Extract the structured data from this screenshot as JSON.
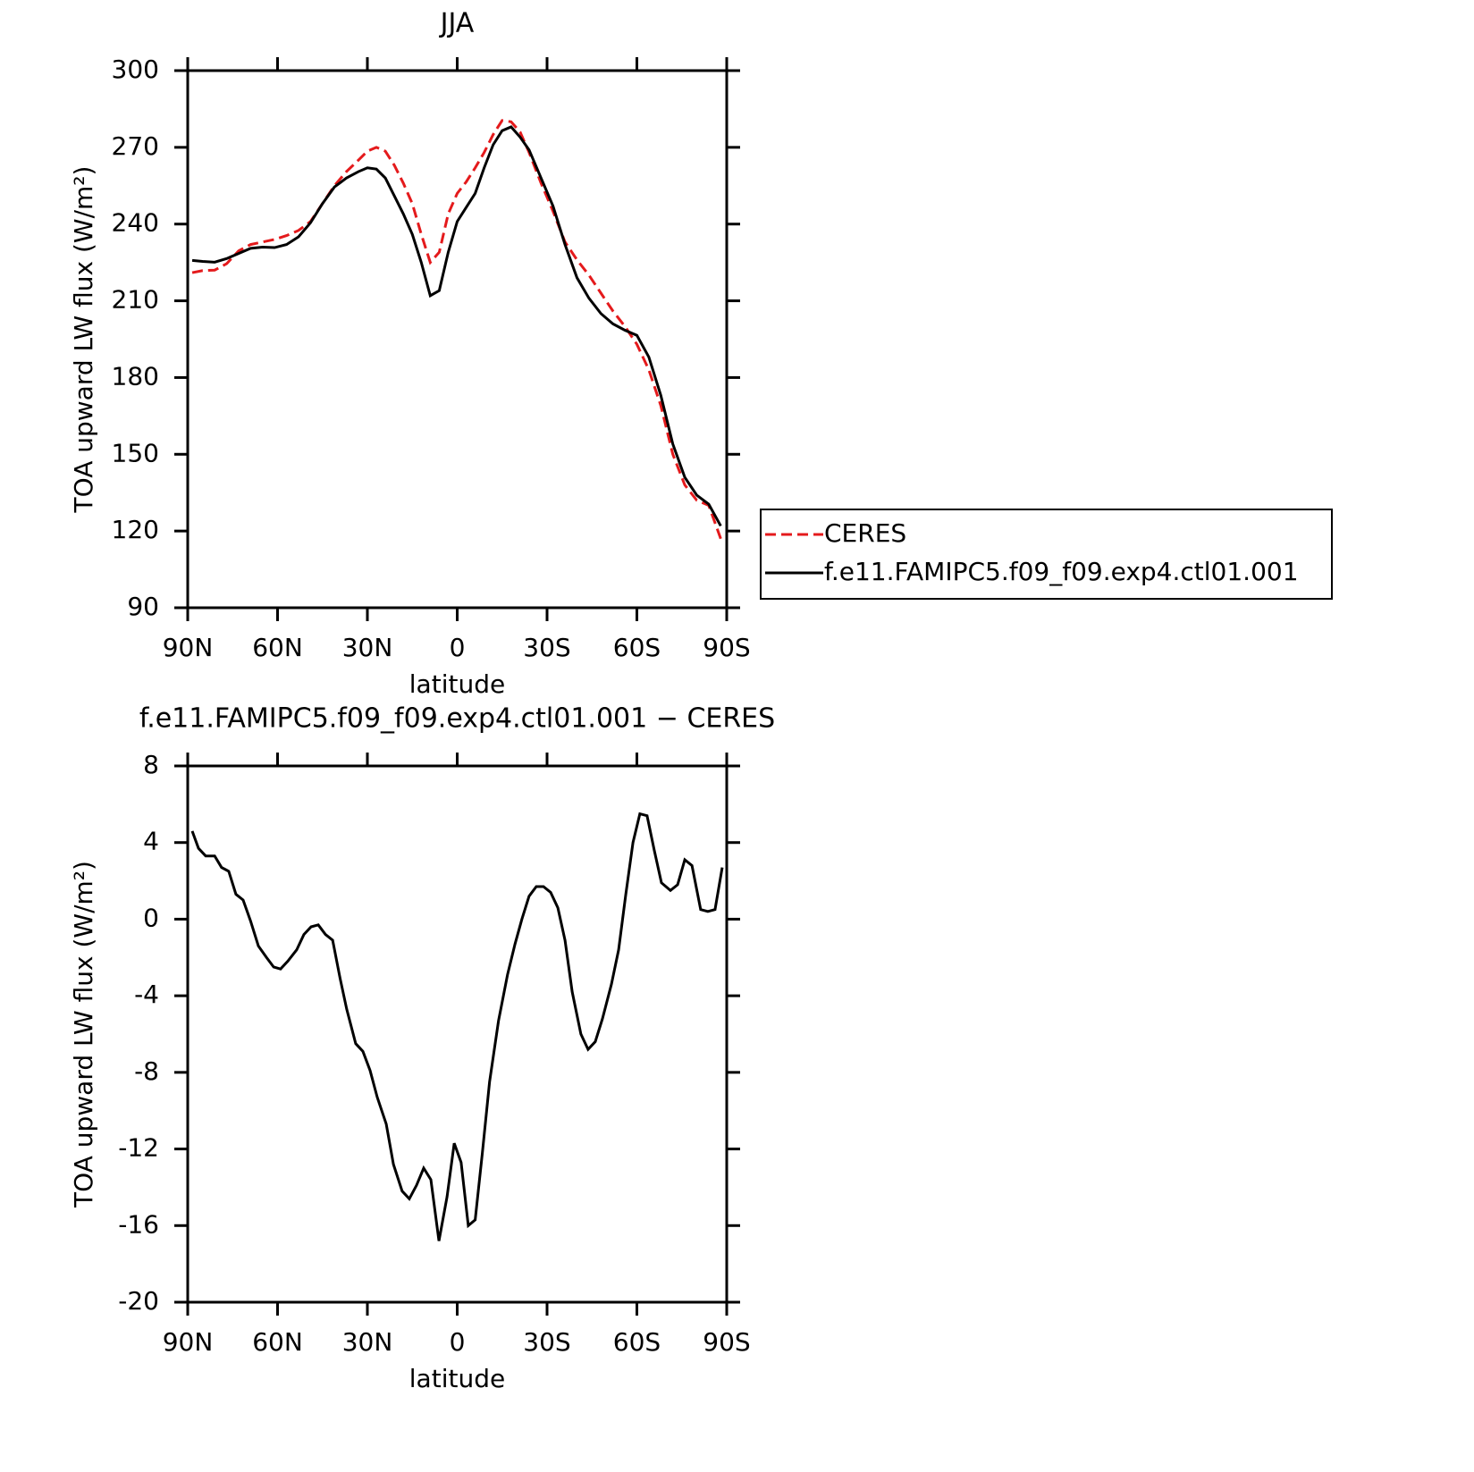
{
  "chart_data": [
    {
      "type": "line",
      "title": "JJA",
      "x_label": "latitude",
      "y_label": "TOA upward LW flux (W/m²)",
      "x": [
        88.5,
        85,
        81,
        77,
        73,
        69,
        65,
        61,
        57,
        53,
        49,
        45,
        41,
        37,
        33,
        30,
        27,
        24,
        21,
        18,
        15,
        12,
        9,
        6,
        3,
        0,
        -3,
        -6,
        -9,
        -12,
        -15,
        -18,
        -21,
        -24,
        -28,
        -32,
        -36,
        -40,
        -44,
        -48,
        -52,
        -56,
        -60,
        -64,
        -68,
        -72,
        -76,
        -80,
        -84,
        -88
      ],
      "series": [
        {
          "name": "CERES",
          "color": "#e41a1c",
          "line_style": "dashed",
          "values": [
            221,
            221.8,
            222,
            224.5,
            229.5,
            232,
            233,
            234,
            235.5,
            237.5,
            241,
            248,
            255,
            260.5,
            265,
            268.5,
            270,
            268.5,
            263,
            256,
            248,
            236,
            225,
            229,
            244,
            252,
            256.5,
            262,
            268,
            275,
            280.5,
            280,
            276,
            268,
            256,
            245,
            233,
            226,
            220,
            213,
            206,
            200,
            193,
            183,
            169,
            150,
            138,
            132,
            130,
            117
          ]
        },
        {
          "name": "f.e11.FAMIPC5.f09_f09.exp4.ctl01.001",
          "color": "#000000",
          "line_style": "solid",
          "values": [
            225.8,
            225.4,
            225.1,
            226.5,
            228.5,
            230.5,
            231,
            230.8,
            232,
            235,
            240.5,
            248,
            254.5,
            258,
            260.5,
            262,
            261.5,
            258,
            251,
            244,
            236,
            225,
            212,
            214,
            229,
            241,
            246.5,
            252,
            262,
            271,
            276.5,
            278,
            274,
            269,
            258,
            247,
            232,
            219,
            211,
            205,
            201,
            198.5,
            196.5,
            188,
            173,
            154,
            141,
            134,
            130.5,
            122
          ]
        }
      ],
      "xlim": [
        90,
        -90
      ],
      "xticks": [
        {
          "value": 90,
          "label": "90N"
        },
        {
          "value": 60,
          "label": "60N"
        },
        {
          "value": 30,
          "label": "30N"
        },
        0,
        {
          "value": -30,
          "label": "30S"
        },
        {
          "value": -60,
          "label": "60S"
        },
        {
          "value": -90,
          "label": "90S"
        }
      ],
      "ylim": [
        90,
        300
      ],
      "yticks": [
        90,
        120,
        150,
        180,
        210,
        240,
        270,
        300
      ],
      "legend": "right"
    },
    {
      "type": "line",
      "title": "f.e11.FAMIPC5.f09_f09.exp4.ctl01.001 − CERES",
      "x_label": "latitude",
      "y_label": "TOA upward LW flux (W/m²)",
      "color": "#000000",
      "x": [
        88.5,
        86.4,
        84,
        81,
        78.7,
        76.3,
        73.9,
        71.5,
        69,
        66.4,
        63.7,
        61.3,
        59,
        56.6,
        53.6,
        51.2,
        48.8,
        46.4,
        44,
        41.6,
        39.1,
        36.9,
        33.9,
        31.5,
        29.1,
        26.7,
        23.7,
        21.3,
        18.4,
        16,
        13.6,
        11.2,
        8.8,
        6.1,
        3.4,
        1,
        -1.3,
        -3.7,
        -6,
        -8.4,
        -10.8,
        -13.8,
        -16.8,
        -19.3,
        -21.6,
        -24,
        -26.4,
        -28.8,
        -31.2,
        -33.6,
        -36,
        -38.4,
        -41.3,
        -43.7,
        -46.1,
        -48.5,
        -51.5,
        -53.9,
        -56.3,
        -58.7,
        -61,
        -63.4,
        -65.8,
        -68.2,
        -71.2,
        -73.6,
        -76,
        -78.4,
        -81.3,
        -83.7,
        -86.1,
        -88.5
      ],
      "values": [
        4.6,
        3.7,
        3.3,
        3.3,
        2.7,
        2.5,
        1.3,
        1.0,
        -0.1,
        -1.4,
        -2,
        -2.5,
        -2.6,
        -2.2,
        -1.6,
        -0.8,
        -0.4,
        -0.3,
        -0.8,
        -1.1,
        -3.1,
        -4.7,
        -6.5,
        -6.9,
        -7.9,
        -9.3,
        -10.7,
        -12.8,
        -14.2,
        -14.6,
        -13.9,
        -13,
        -13.6,
        -16.8,
        -14.5,
        -11.7,
        -12.7,
        -16,
        -15.7,
        -12.2,
        -8.5,
        -5.3,
        -2.9,
        -1.3,
        0,
        1.2,
        1.7,
        1.7,
        1.4,
        0.6,
        -1.1,
        -3.8,
        -6,
        -6.8,
        -6.4,
        -5.2,
        -3.4,
        -1.6,
        1.3,
        4,
        5.5,
        5.4,
        3.6,
        1.9,
        1.5,
        1.8,
        3.1,
        2.8,
        0.5,
        0.4,
        0.5,
        2.7
      ],
      "xlim": [
        90,
        -90
      ],
      "xticks": [
        {
          "value": 90,
          "label": "90N"
        },
        {
          "value": 60,
          "label": "60N"
        },
        {
          "value": 30,
          "label": "30N"
        },
        0,
        {
          "value": -30,
          "label": "30S"
        },
        {
          "value": -60,
          "label": "60S"
        },
        {
          "value": -90,
          "label": "90S"
        }
      ],
      "ylim": [
        -20,
        8
      ],
      "yticks": [
        -20,
        -16,
        -12,
        -8,
        -4,
        0,
        4,
        8
      ]
    }
  ]
}
